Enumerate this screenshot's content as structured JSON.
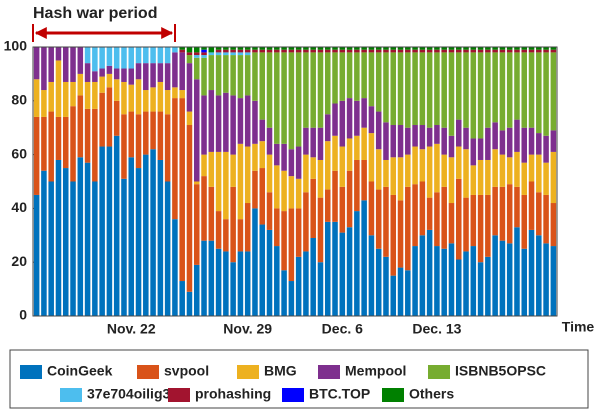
{
  "chart_data": {
    "type": "stacked_bar",
    "annotation": "Hash war period",
    "xlabel": "Time",
    "categories": [
      null,
      null,
      null,
      null,
      null,
      null,
      null,
      null,
      null,
      null,
      null,
      null,
      null,
      "Nov. 22",
      null,
      null,
      null,
      null,
      null,
      null,
      null,
      null,
      null,
      null,
      null,
      null,
      null,
      null,
      null,
      "Nov. 29",
      null,
      null,
      null,
      null,
      null,
      null,
      null,
      null,
      null,
      null,
      null,
      null,
      "Dec. 6",
      null,
      null,
      null,
      null,
      null,
      null,
      null,
      null,
      null,
      null,
      null,
      null,
      "Dec. 13",
      null,
      null,
      null,
      null,
      null,
      null,
      null,
      null,
      null,
      null,
      null,
      null,
      null,
      null,
      null,
      null
    ],
    "series": [
      {
        "name": "CoinGeek",
        "color": "#0072bd",
        "values": [
          45,
          54,
          50,
          58,
          55,
          50,
          59,
          57,
          50,
          63,
          63,
          67,
          51,
          59,
          55,
          60,
          62,
          58,
          50,
          36,
          13,
          9,
          19,
          28,
          28,
          25,
          24,
          20,
          24,
          24,
          40,
          34,
          32,
          26,
          17,
          13,
          22,
          24,
          29,
          20,
          35,
          35,
          31,
          33,
          39,
          43,
          30,
          25,
          22,
          15,
          18,
          17,
          26,
          30,
          32,
          26,
          25,
          27,
          21,
          24,
          26,
          20,
          22,
          30,
          28,
          27,
          33,
          25,
          32,
          30,
          27,
          26
        ]
      },
      {
        "name": "svpool",
        "color": "#d95319",
        "values": [
          29,
          20,
          26,
          16,
          19,
          28,
          23,
          20,
          27,
          20,
          22,
          13,
          24,
          17,
          20,
          16,
          14,
          18,
          25,
          45,
          68,
          62,
          30,
          24,
          20,
          14,
          12,
          28,
          12,
          18,
          14,
          21,
          14,
          14,
          22,
          27,
          18,
          22,
          22,
          24,
          12,
          19,
          17,
          21,
          19,
          15,
          20,
          22,
          26,
          30,
          25,
          31,
          23,
          20,
          12,
          20,
          23,
          15,
          30,
          20,
          19,
          25,
          23,
          18,
          20,
          22,
          15,
          20,
          18,
          16,
          18,
          16
        ]
      },
      {
        "name": "BMG",
        "color": "#edb120",
        "values": [
          14,
          10,
          11,
          21,
          13,
          9,
          8,
          10,
          10,
          6,
          5,
          8,
          12,
          10,
          13,
          8,
          9,
          11,
          9,
          4,
          3,
          5,
          1,
          8,
          13,
          22,
          25,
          12,
          28,
          21,
          10,
          10,
          14,
          16,
          15,
          12,
          11,
          14,
          8,
          14,
          18,
          13,
          15,
          12,
          9,
          12,
          18,
          15,
          10,
          14,
          16,
          12,
          14,
          12,
          19,
          18,
          12,
          17,
          12,
          18,
          11,
          13,
          13,
          14,
          12,
          10,
          13,
          12,
          10,
          14,
          12,
          19
        ]
      },
      {
        "name": "Mempool",
        "color": "#7e2f8e",
        "values": [
          12,
          16,
          13,
          5,
          13,
          13,
          10,
          7,
          4,
          3,
          3,
          4,
          5,
          6,
          6,
          10,
          9,
          7,
          10,
          13,
          14,
          18,
          38,
          22,
          23,
          21,
          22,
          22,
          17,
          19,
          16,
          8,
          10,
          8,
          10,
          10,
          12,
          10,
          11,
          12,
          10,
          12,
          17,
          15,
          13,
          11,
          10,
          14,
          14,
          12,
          12,
          10,
          8,
          9,
          7,
          7,
          10,
          8,
          10,
          8,
          10,
          8,
          12,
          10,
          9,
          11,
          12,
          13,
          10,
          8,
          10,
          8
        ]
      },
      {
        "name": "ISBNB5OPSC",
        "color": "#77ac30",
        "values": [
          0,
          0,
          0,
          0,
          0,
          0,
          0,
          0,
          0,
          0,
          0,
          0,
          0,
          0,
          0,
          0,
          0,
          0,
          0,
          0,
          0,
          3,
          8,
          14,
          13,
          15,
          14,
          15,
          16,
          15,
          18,
          25,
          28,
          34,
          34,
          36,
          35,
          28,
          28,
          28,
          23,
          19,
          18,
          17,
          18,
          17,
          20,
          22,
          26,
          27,
          27,
          28,
          27,
          27,
          28,
          27,
          28,
          31,
          25,
          28,
          32,
          32,
          28,
          26,
          29,
          28,
          25,
          28,
          28,
          30,
          31,
          29
        ]
      },
      {
        "name": "37e704oilig3",
        "color": "#4dbeee",
        "values": [
          0,
          0,
          0,
          0,
          0,
          0,
          0,
          6,
          9,
          8,
          7,
          8,
          8,
          8,
          6,
          6,
          6,
          6,
          6,
          2,
          0,
          0,
          1,
          1,
          1,
          1,
          1,
          1,
          1,
          1,
          0,
          0,
          0,
          0,
          0,
          0,
          0,
          0,
          0,
          0,
          0,
          0,
          0,
          0,
          0,
          0,
          0,
          0,
          0,
          0,
          0,
          0,
          0,
          0,
          0,
          0,
          0,
          0,
          0,
          0,
          0,
          0,
          0,
          0,
          0,
          0,
          0,
          0,
          0,
          0,
          0,
          0
        ]
      },
      {
        "name": "prohashing",
        "color": "#a2142f",
        "values": [
          0,
          0,
          0,
          0,
          0,
          0,
          0,
          0,
          0,
          0,
          0,
          0,
          0,
          0,
          0,
          0,
          0,
          0,
          0,
          0,
          1,
          1,
          1,
          1,
          0,
          1,
          1,
          1,
          1,
          1,
          1,
          1,
          1,
          1,
          1,
          1,
          1,
          1,
          1,
          1,
          1,
          1,
          1,
          1,
          1,
          1,
          1,
          1,
          1,
          1,
          1,
          1,
          1,
          1,
          1,
          1,
          1,
          1,
          1,
          1,
          1,
          1,
          1,
          1,
          1,
          1,
          1,
          1,
          1,
          1,
          1,
          1
        ]
      },
      {
        "name": "BTC.TOP",
        "color": "#0000ff",
        "values": [
          0,
          0,
          0,
          0,
          0,
          0,
          0,
          0,
          0,
          0,
          0,
          0,
          0,
          0,
          0,
          0,
          0,
          0,
          0,
          0,
          0,
          0,
          0,
          1,
          0,
          0,
          0,
          0,
          0,
          0,
          0,
          0,
          0,
          0,
          0,
          0,
          0,
          0,
          0,
          0,
          0,
          0,
          0,
          0,
          0,
          0,
          0,
          0,
          0,
          0,
          0,
          0,
          0,
          0,
          0,
          0,
          0,
          0,
          0,
          0,
          0,
          0,
          0,
          0,
          0,
          0,
          0,
          0,
          0,
          0,
          0,
          0
        ]
      },
      {
        "name": "Others",
        "color": "#008000",
        "values": [
          0,
          0,
          0,
          0,
          0,
          0,
          0,
          0,
          0,
          0,
          0,
          0,
          0,
          0,
          0,
          0,
          0,
          0,
          0,
          0,
          1,
          2,
          2,
          1,
          2,
          1,
          1,
          1,
          1,
          1,
          1,
          1,
          1,
          1,
          1,
          1,
          1,
          1,
          1,
          1,
          1,
          1,
          1,
          1,
          1,
          1,
          1,
          1,
          1,
          1,
          1,
          1,
          1,
          1,
          1,
          1,
          1,
          1,
          1,
          1,
          1,
          1,
          1,
          1,
          1,
          1,
          1,
          1,
          1,
          1,
          1,
          1
        ]
      }
    ],
    "ylim": [
      0,
      100
    ],
    "yticks": [
      0,
      20,
      40,
      60,
      80,
      100
    ]
  }
}
